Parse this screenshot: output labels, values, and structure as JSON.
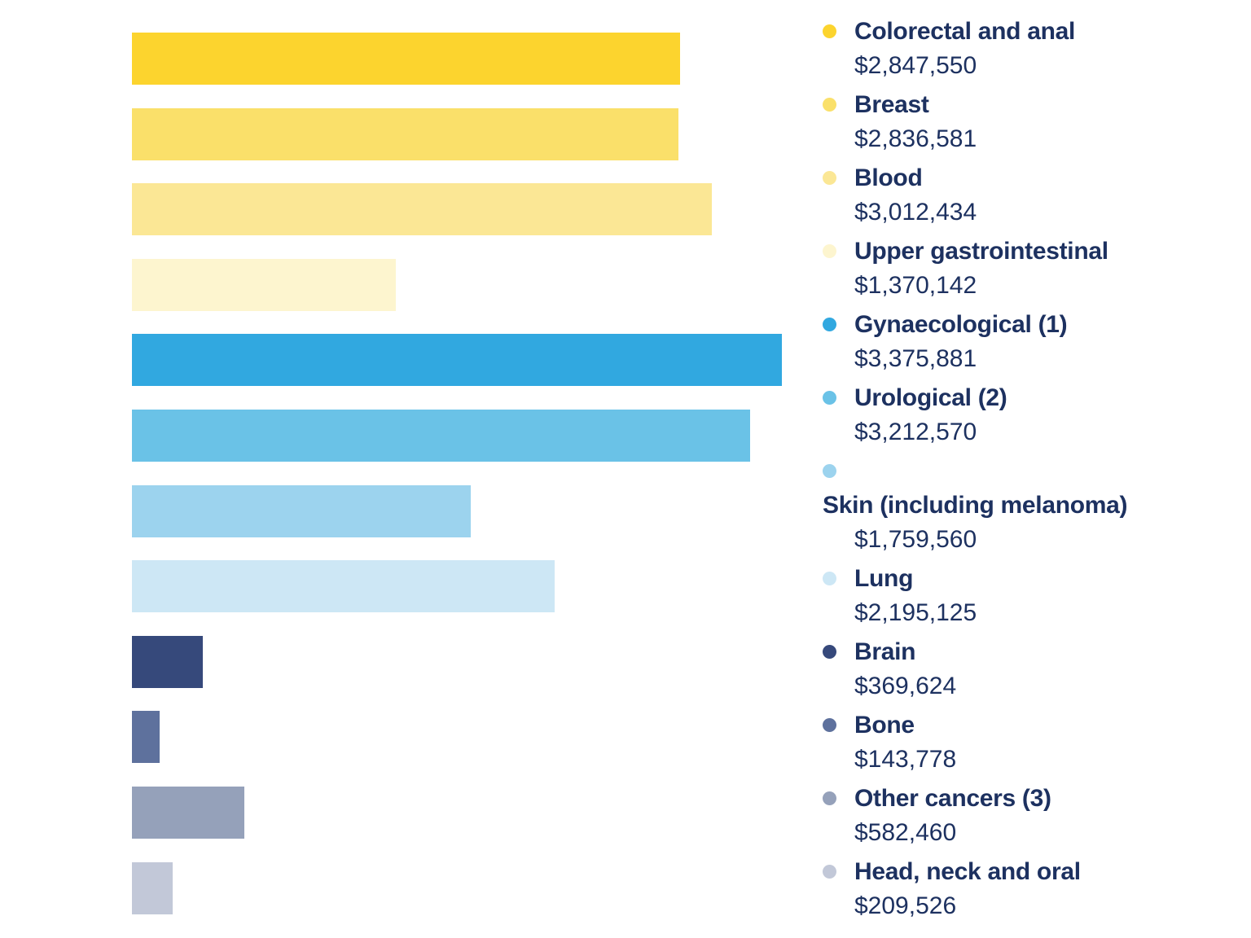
{
  "text_color": "#1d3160",
  "background_color": "#ffffff",
  "chart_data": {
    "type": "bar",
    "orientation": "horizontal",
    "title": "",
    "xlabel": "",
    "ylabel": "",
    "grid": false,
    "axes_visible": false,
    "legend_position": "right",
    "xlim": [
      0,
      3375881
    ],
    "categories": [
      "Colorectal and anal",
      "Breast",
      "Blood",
      "Upper gastrointestinal",
      "Gynaecological (1)",
      "Urological (2)",
      "Skin (including melanoma)",
      "Lung",
      "Brain",
      "Bone",
      "Other cancers (3)",
      "Head, neck and oral"
    ],
    "series": [
      {
        "label": "Colorectal and anal",
        "value": 2847550,
        "value_label": "$2,847,550",
        "color": "#fcd42e",
        "legend_wrapped": false
      },
      {
        "label": "Breast",
        "value": 2836581,
        "value_label": "$2,836,581",
        "color": "#fae06a",
        "legend_wrapped": false
      },
      {
        "label": "Blood",
        "value": 3012434,
        "value_label": "$3,012,434",
        "color": "#fbe795",
        "legend_wrapped": false
      },
      {
        "label": "Upper gastrointestinal",
        "value": 1370142,
        "value_label": "$1,370,142",
        "color": "#fdf5cf",
        "legend_wrapped": false
      },
      {
        "label": "Gynaecological (1)",
        "value": 3375881,
        "value_label": "$3,375,881",
        "color": "#31a8e0",
        "legend_wrapped": false
      },
      {
        "label": "Urological (2)",
        "value": 3212570,
        "value_label": "$3,212,570",
        "color": "#6ac2e7",
        "legend_wrapped": false
      },
      {
        "label": "Skin (including melanoma)",
        "value": 1759560,
        "value_label": "$1,759,560",
        "color": "#9cd3ee",
        "legend_wrapped": true
      },
      {
        "label": "Lung",
        "value": 2195125,
        "value_label": "$2,195,125",
        "color": "#cde7f5",
        "legend_wrapped": false
      },
      {
        "label": "Brain",
        "value": 369624,
        "value_label": "$369,624",
        "color": "#36497b",
        "legend_wrapped": false
      },
      {
        "label": "Bone",
        "value": 143778,
        "value_label": "$143,778",
        "color": "#5e719d",
        "legend_wrapped": false
      },
      {
        "label": "Other cancers (3)",
        "value": 582460,
        "value_label": "$582,460",
        "color": "#95a1ba",
        "legend_wrapped": false
      },
      {
        "label": "Head, neck and oral",
        "value": 209526,
        "value_label": "$209,526",
        "color": "#c2c8d8",
        "legend_wrapped": false
      }
    ]
  }
}
